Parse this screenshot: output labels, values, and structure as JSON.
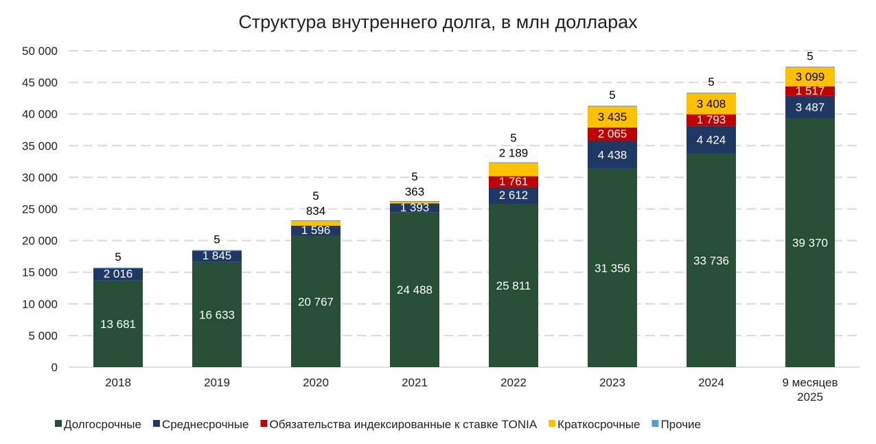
{
  "chart_data": {
    "type": "bar",
    "stacked": true,
    "title": "Структура внутреннего долга, в млн долларах",
    "categories": [
      "2018",
      "2019",
      "2020",
      "2021",
      "2022",
      "2023",
      "2024",
      "9 месяцев 2025"
    ],
    "ylim": [
      0,
      50000
    ],
    "yticks": [
      0,
      5000,
      10000,
      15000,
      20000,
      25000,
      30000,
      35000,
      40000,
      45000,
      50000
    ],
    "ytick_labels": [
      "0",
      "5 000",
      "10 000",
      "15 000",
      "20 000",
      "25 000",
      "30 000",
      "35 000",
      "40 000",
      "45 000",
      "50 000"
    ],
    "grid": true,
    "legend_position": "bottom",
    "series": [
      {
        "name": "Долгосрочные",
        "color": "#264f36",
        "label_color": "#ffffff",
        "values": [
          13681,
          16633,
          20767,
          24488,
          25811,
          31356,
          33736,
          39370
        ],
        "labels": [
          "13 681",
          "16 633",
          "20 767",
          "24 488",
          "25 811",
          "31 356",
          "33 736",
          "39 370"
        ]
      },
      {
        "name": "Среднесрочные",
        "color": "#1f3864",
        "label_color": "#ffffff",
        "values": [
          2016,
          1845,
          1596,
          1393,
          2612,
          4438,
          4424,
          3487
        ],
        "labels": [
          "2 016",
          "1 845",
          "1 596",
          "1 393",
          "2 612",
          "4 438",
          "4 424",
          "3 487"
        ]
      },
      {
        "name": "Обязательства индексированные к ставке TONIA",
        "color": "#c00000",
        "label_color": "#ffffff",
        "values": [
          0,
          0,
          0,
          0,
          1761,
          2065,
          1793,
          1517
        ],
        "labels": [
          "",
          "",
          "",
          "",
          "1 761",
          "2 065",
          "1 793",
          "1 517"
        ]
      },
      {
        "name": "Краткосрочные",
        "color": "#ffc000",
        "label_color": "#000000",
        "values": [
          0,
          0,
          834,
          363,
          2189,
          3435,
          3408,
          3099
        ],
        "labels": [
          "",
          "",
          "834",
          "363",
          "2 189",
          "3 435",
          "3 408",
          "3 099"
        ]
      },
      {
        "name": "Прочие",
        "color": "#5b9bd5",
        "label_color": "#000000",
        "values": [
          5,
          5,
          5,
          5,
          5,
          5,
          5,
          5
        ],
        "labels": [
          "5",
          "5",
          "5",
          "5",
          "5",
          "5",
          "5",
          "5"
        ]
      }
    ]
  }
}
